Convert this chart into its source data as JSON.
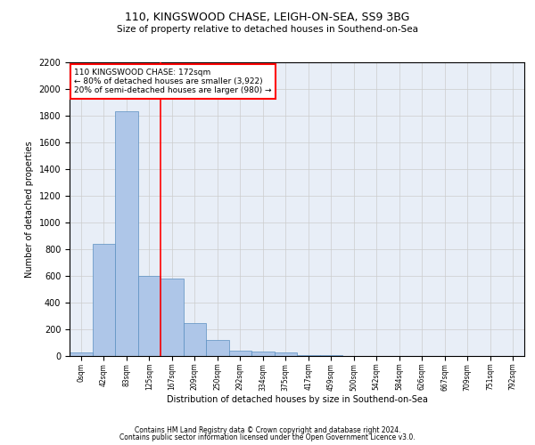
{
  "title_line1": "110, KINGSWOOD CHASE, LEIGH-ON-SEA, SS9 3BG",
  "title_line2": "Size of property relative to detached houses in Southend-on-Sea",
  "xlabel": "Distribution of detached houses by size in Southend-on-Sea",
  "ylabel": "Number of detached properties",
  "footer_line1": "Contains HM Land Registry data © Crown copyright and database right 2024.",
  "footer_line2": "Contains public sector information licensed under the Open Government Licence v3.0.",
  "annotation_line1": "110 KINGSWOOD CHASE: 172sqm",
  "annotation_line2": "← 80% of detached houses are smaller (3,922)",
  "annotation_line3": "20% of semi-detached houses are larger (980) →",
  "bar_values": [
    30,
    840,
    1830,
    600,
    580,
    250,
    120,
    40,
    35,
    25,
    10,
    5,
    2,
    2,
    2,
    2,
    2,
    2,
    2,
    2
  ],
  "bar_labels": [
    "0sqm",
    "42sqm",
    "83sqm",
    "125sqm",
    "167sqm",
    "209sqm",
    "250sqm",
    "292sqm",
    "334sqm",
    "375sqm",
    "417sqm",
    "459sqm",
    "500sqm",
    "542sqm",
    "584sqm",
    "626sqm",
    "667sqm",
    "709sqm",
    "751sqm",
    "792sqm"
  ],
  "bar_color": "#aec6e8",
  "bar_edge_color": "#5a8fc0",
  "red_line_x": 3.5,
  "ylim": [
    0,
    2200
  ],
  "yticks": [
    0,
    200,
    400,
    600,
    800,
    1000,
    1200,
    1400,
    1600,
    1800,
    2000,
    2200
  ],
  "annotation_box_color": "white",
  "annotation_box_edge": "red",
  "red_vline_color": "red",
  "grid_color": "#cccccc",
  "background_color": "#e8eef7"
}
